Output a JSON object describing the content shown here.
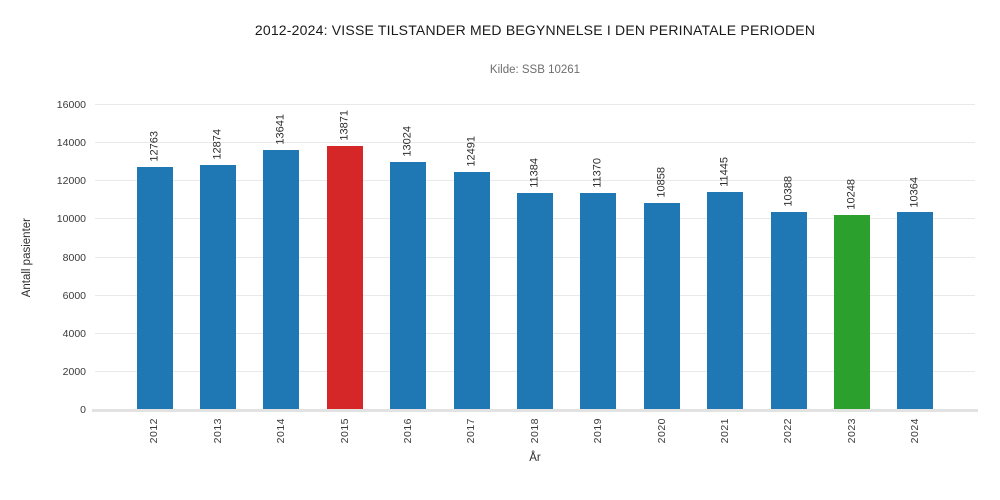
{
  "chart_data": {
    "type": "bar",
    "title": "2012-2024: VISSE TILSTANDER MED BEGYNNELSE I DEN PERINATALE PERIODEN",
    "subtitle": "Kilde: SSB 10261",
    "xlabel": "År",
    "ylabel": "Antall pasienter",
    "categories": [
      "2012",
      "2013",
      "2014",
      "2015",
      "2016",
      "2017",
      "2018",
      "2019",
      "2020",
      "2021",
      "2022",
      "2023",
      "2024"
    ],
    "values": [
      12763,
      12874,
      13641,
      13871,
      13024,
      12491,
      11384,
      11370,
      10858,
      11445,
      10388,
      10248,
      10364
    ],
    "bar_colors": [
      "#1f77b4",
      "#1f77b4",
      "#1f77b4",
      "#d62728",
      "#1f77b4",
      "#1f77b4",
      "#1f77b4",
      "#1f77b4",
      "#1f77b4",
      "#1f77b4",
      "#1f77b4",
      "#2ca02c",
      "#1f77b4"
    ],
    "value_labels_rotation_deg": 90,
    "ylim": [
      0,
      16000
    ],
    "yticks": [
      0,
      2000,
      4000,
      6000,
      8000,
      10000,
      12000,
      14000,
      16000
    ],
    "grid": "horizontal",
    "legend": "none",
    "colors": {
      "default_bar": "#1f77b4",
      "max_bar": "#d62728",
      "min_bar": "#2ca02c",
      "gridline": "#e9e9e9",
      "axis_line": "#e2e2e2",
      "title_text": "#1a1a1a",
      "subtitle_text": "#6e6e6e",
      "tick_text": "#3a3a3a"
    }
  }
}
